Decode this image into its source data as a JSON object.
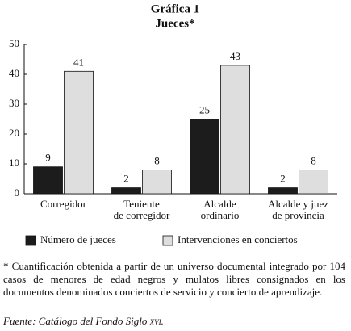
{
  "chart_data": {
    "type": "bar",
    "title": "Gráfica 1",
    "subtitle": "Jueces*",
    "categories": [
      "Corregidor",
      "Teniente\nde corregidor",
      "Alcalde\nordinario",
      "Alcalde y juez\nde provincia"
    ],
    "series": [
      {
        "name": "Número de jueces",
        "color": "#1c1c1c",
        "values": [
          9,
          2,
          25,
          2
        ]
      },
      {
        "name": "Intervenciones en conciertos",
        "color": "#dedede",
        "values": [
          41,
          8,
          43,
          8
        ]
      }
    ],
    "ylim": [
      0,
      50
    ],
    "yticks": [
      0,
      10,
      20,
      30,
      40,
      50
    ],
    "grid": false,
    "note": "* Cuantificación obtenida a partir de un universo documental integrado por 104 casos de menores de edad negros y mulatos libres consignados en los documentos denominados conciertos de servicio y concierto de aprendizaje.",
    "source": "Fuente: Catálogo del Fondo Siglo xvi."
  }
}
